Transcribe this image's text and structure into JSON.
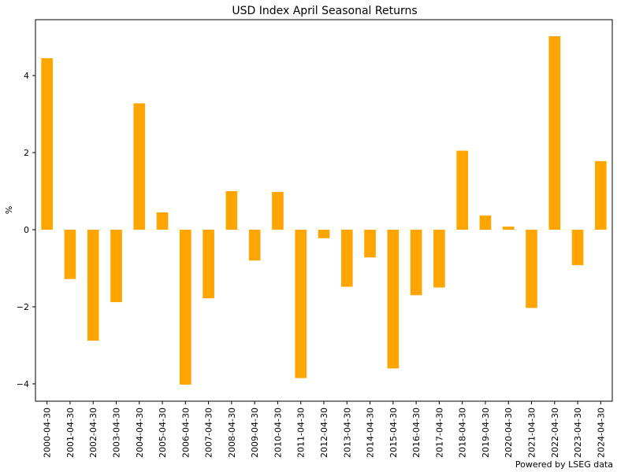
{
  "chart_data": {
    "type": "bar",
    "title": "USD Index April Seasonal Returns",
    "xlabel": "",
    "ylabel": "%",
    "categories": [
      "2000-04-30",
      "2001-04-30",
      "2002-04-30",
      "2003-04-30",
      "2004-04-30",
      "2005-04-30",
      "2006-04-30",
      "2007-04-30",
      "2008-04-30",
      "2009-04-30",
      "2010-04-30",
      "2011-04-30",
      "2012-04-30",
      "2013-04-30",
      "2014-04-30",
      "2015-04-30",
      "2016-04-30",
      "2017-04-30",
      "2018-04-30",
      "2019-04-30",
      "2020-04-30",
      "2021-04-30",
      "2022-04-30",
      "2023-04-30",
      "2024-04-30"
    ],
    "values": [
      4.45,
      -1.28,
      -2.88,
      -1.88,
      3.28,
      0.45,
      -4.02,
      -1.78,
      1.0,
      -0.8,
      0.98,
      -3.85,
      -0.22,
      -1.48,
      -0.72,
      -3.6,
      -1.7,
      -1.5,
      2.05,
      0.37,
      0.08,
      -2.03,
      5.02,
      -0.92,
      1.78
    ],
    "yticks": [
      -4,
      -2,
      0,
      2,
      4
    ],
    "ylim": [
      -4.45,
      5.45
    ],
    "grid": false,
    "bar_color": "#FFA500"
  },
  "footer": "Powered by LSEG data"
}
